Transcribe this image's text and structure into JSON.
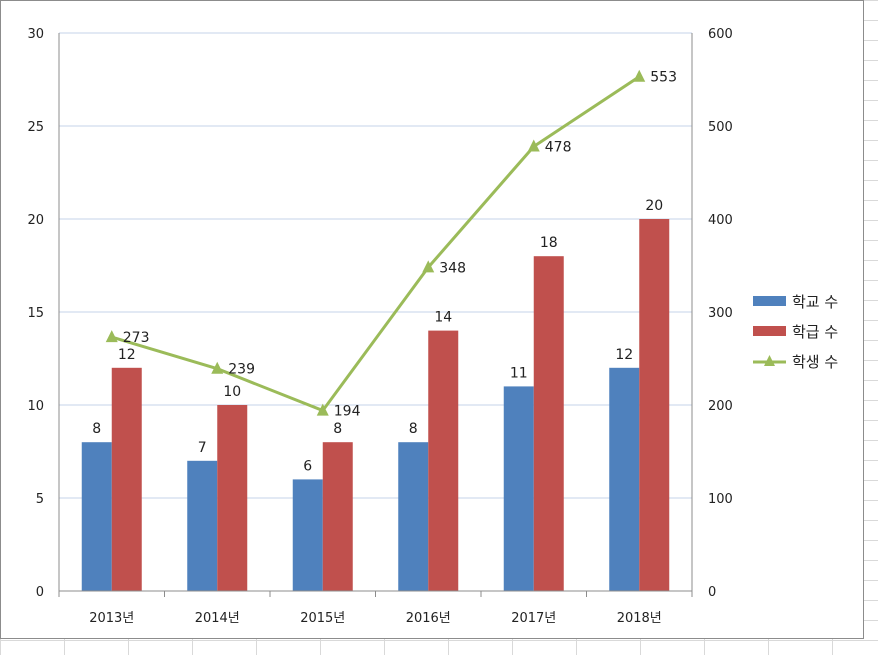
{
  "chart_data": {
    "type": "bar",
    "categories": [
      "2013년",
      "2014년",
      "2015년",
      "2016년",
      "2017년",
      "2018년"
    ],
    "series": [
      {
        "name": "학교 수",
        "type": "bar",
        "axis": "left",
        "color": "#4f81bd",
        "values": [
          8,
          7,
          6,
          8,
          11,
          12
        ]
      },
      {
        "name": "학급 수",
        "type": "bar",
        "axis": "left",
        "color": "#c0504d",
        "values": [
          12,
          10,
          8,
          14,
          18,
          20
        ]
      },
      {
        "name": "학생 수",
        "type": "line",
        "axis": "right",
        "color": "#9bbb59",
        "marker": "triangle",
        "values": [
          273,
          239,
          194,
          348,
          478,
          553
        ]
      }
    ],
    "ylim": [
      0,
      30
    ],
    "yticks": [
      "0",
      "5",
      "10",
      "15",
      "20",
      "25",
      "30"
    ],
    "y2lim": [
      0,
      600
    ],
    "y2ticks": [
      "0",
      "100",
      "200",
      "300",
      "400",
      "500",
      "600"
    ],
    "grid": true,
    "legend_position": "right"
  }
}
